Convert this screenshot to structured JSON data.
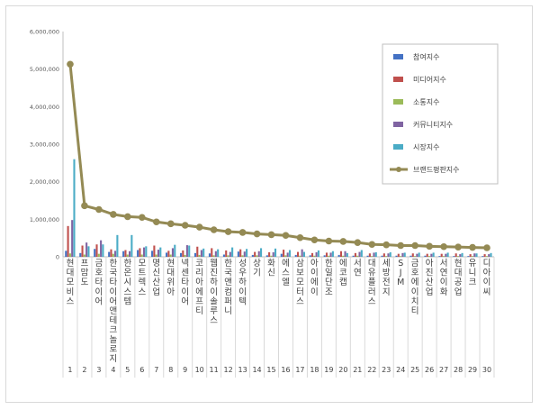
{
  "chart_data": {
    "type": "bar",
    "title": "",
    "xlabel": "",
    "ylabel": "",
    "ylim": [
      0,
      6000000
    ],
    "yticks": [
      "0",
      "1,000,000",
      "2,000,000",
      "3,000,000",
      "4,000,000",
      "5,000,000",
      "6,000,000"
    ],
    "grid": false,
    "legend_position": "top-right",
    "categories": [
      "현대모비스",
      "프맘도",
      "금호타이어",
      "한국타이어앤테크놀로지",
      "한온시스템",
      "모트렉스",
      "명신산업",
      "현대위아",
      "넥센타이어",
      "코리아에프티",
      "웹진하이솔루스",
      "한국앤컴퍼니",
      "성우하이텍",
      "상기",
      "화신",
      "에스엘",
      "삼보모터스",
      "아이에이",
      "한일단조",
      "에코캡",
      "서연",
      "대유플러스",
      "세방전지",
      "SJM",
      "금호에이치티",
      "아진산업",
      "서연이화",
      "현대공업",
      "유니크",
      "디아이씨"
    ],
    "indices": [
      "1",
      "2",
      "3",
      "4",
      "5",
      "6",
      "7",
      "8",
      "9",
      "10",
      "11",
      "12",
      "13",
      "14",
      "15",
      "16",
      "17",
      "18",
      "19",
      "20",
      "21",
      "22",
      "23",
      "24",
      "25",
      "26",
      "27",
      "28",
      "29",
      "30"
    ],
    "series": [
      {
        "name": "참여지수",
        "color": "#4472c4",
        "kind": "bar",
        "values": [
          160000,
          100000,
          210000,
          130000,
          150000,
          180000,
          160000,
          110000,
          100000,
          100000,
          90000,
          60000,
          140000,
          50000,
          40000,
          80000,
          50000,
          40000,
          40000,
          50000,
          30000,
          30000,
          30000,
          30000,
          30000,
          30000,
          20000,
          20000,
          20000,
          20000
        ]
      },
      {
        "name": "미디어지수",
        "color": "#c0504d",
        "kind": "bar",
        "values": [
          820000,
          300000,
          330000,
          200000,
          180000,
          230000,
          300000,
          160000,
          170000,
          270000,
          230000,
          170000,
          200000,
          130000,
          120000,
          190000,
          130000,
          100000,
          110000,
          150000,
          100000,
          90000,
          90000,
          80000,
          90000,
          80000,
          80000,
          90000,
          70000,
          70000
        ]
      },
      {
        "name": "소통지수",
        "color": "#9bbb59",
        "kind": "bar",
        "values": [
          90000,
          60000,
          80000,
          80000,
          60000,
          60000,
          60000,
          60000,
          50000,
          50000,
          40000,
          40000,
          40000,
          40000,
          30000,
          40000,
          30000,
          30000,
          30000,
          30000,
          30000,
          20000,
          20000,
          20000,
          20000,
          20000,
          20000,
          20000,
          20000,
          20000
        ]
      },
      {
        "name": "커뮤니티지수",
        "color": "#8064a2",
        "kind": "bar",
        "values": [
          980000,
          380000,
          440000,
          160000,
          150000,
          250000,
          190000,
          230000,
          310000,
          180000,
          150000,
          130000,
          140000,
          150000,
          120000,
          110000,
          200000,
          120000,
          110000,
          150000,
          130000,
          110000,
          90000,
          100000,
          80000,
          80000,
          80000,
          70000,
          90000,
          70000
        ]
      },
      {
        "name": "시장지수",
        "color": "#4bacc6",
        "kind": "bar",
        "values": [
          2600000,
          280000,
          330000,
          580000,
          580000,
          280000,
          250000,
          320000,
          300000,
          220000,
          200000,
          250000,
          210000,
          230000,
          220000,
          180000,
          130000,
          170000,
          150000,
          100000,
          180000,
          120000,
          120000,
          110000,
          110000,
          110000,
          110000,
          100000,
          90000,
          100000
        ]
      },
      {
        "name": "브랜드평판지수",
        "color": "#948a54",
        "kind": "line",
        "values": [
          5130000,
          1360000,
          1260000,
          1130000,
          1070000,
          1050000,
          930000,
          880000,
          840000,
          790000,
          720000,
          670000,
          650000,
          610000,
          590000,
          570000,
          510000,
          450000,
          420000,
          410000,
          380000,
          330000,
          320000,
          300000,
          300000,
          280000,
          270000,
          260000,
          250000,
          240000
        ]
      }
    ]
  }
}
